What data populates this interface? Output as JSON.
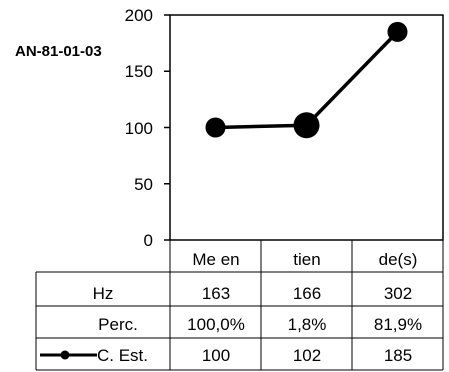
{
  "chart_data": {
    "type": "line",
    "title": "AN-81-01-03",
    "categories": [
      "Me en",
      "tien",
      "de(s)"
    ],
    "ylim": [
      0,
      200
    ],
    "yticks": [
      "200",
      "150",
      "100",
      "50",
      "0"
    ],
    "grid": false,
    "series": [
      {
        "name": "C. Est.",
        "values": [
          100,
          102,
          185
        ],
        "color": "#000000",
        "marker_emphasis": [
          false,
          true,
          false
        ]
      }
    ],
    "table": {
      "rows": [
        {
          "label": "Hz",
          "cells": [
            "163",
            "166",
            "302"
          ]
        },
        {
          "label": "Perc.",
          "cells": [
            "100,0%",
            "1,8%",
            "81,9%"
          ]
        },
        {
          "label": "C. Est.",
          "cells": [
            "100",
            "102",
            "185"
          ],
          "legend_marker": true
        }
      ]
    }
  }
}
